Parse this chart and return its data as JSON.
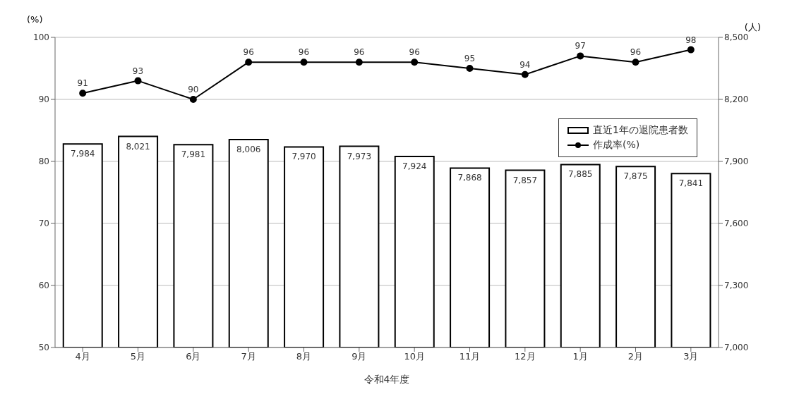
{
  "chart_data": {
    "type": "bar",
    "xlabel": "令和4年度",
    "ylabel": "(%)",
    "y2label": "(人)",
    "categories": [
      "4月",
      "5月",
      "6月",
      "7月",
      "8月",
      "9月",
      "10月",
      "11月",
      "12月",
      "1月",
      "2月",
      "3月"
    ],
    "series": [
      {
        "name": "直近1年の退院患者数",
        "axis": "y2",
        "color": "#ffffff",
        "values": [
          7984,
          8021,
          7981,
          8006,
          7970,
          7973,
          7924,
          7868,
          7857,
          7885,
          7875,
          7841
        ],
        "value_labels": [
          "7,984",
          "8,021",
          "7,981",
          "8,006",
          "7,970",
          "7,973",
          "7,924",
          "7,868",
          "7,857",
          "7,885",
          "7,875",
          "7,841"
        ]
      },
      {
        "name": "作成率(%)",
        "type": "line",
        "axis": "y",
        "color": "#000000",
        "values": [
          91,
          93,
          90,
          96,
          96,
          96,
          96,
          95,
          94,
          97,
          96,
          98
        ],
        "value_labels": [
          "91",
          "93",
          "90",
          "96",
          "96",
          "96",
          "96",
          "95",
          "94",
          "97",
          "96",
          "98"
        ]
      }
    ],
    "ylim": [
      50,
      100
    ],
    "yticks": [
      50,
      60,
      70,
      80,
      90,
      100
    ],
    "y2lim": [
      7000,
      8500
    ],
    "y2ticks": [
      {
        "value": 7000,
        "label": "7,000"
      },
      {
        "value": 7300,
        "label": "7,300"
      },
      {
        "value": 7600,
        "label": "7,600"
      },
      {
        "value": 7900,
        "label": "7,900"
      },
      {
        "value": 8200,
        "label": "8,200"
      },
      {
        "value": 8500,
        "label": "8,500"
      }
    ],
    "grid": "y",
    "legend": "right",
    "marker": "circle",
    "line_style": "solid"
  }
}
